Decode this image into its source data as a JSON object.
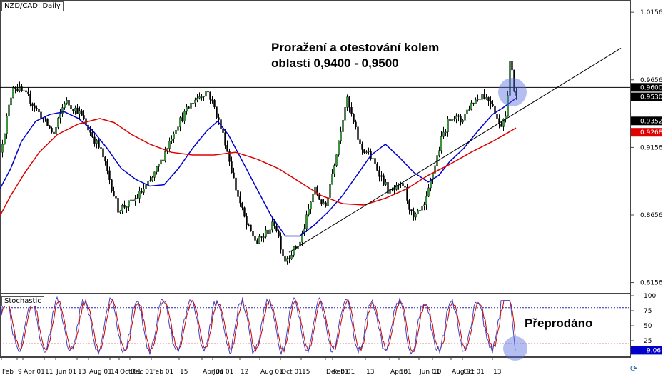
{
  "chart_title": "NZD/CAD: Daily",
  "annotation_text": {
    "line1": "Proražení a otestování kolem",
    "line2": "oblasti 0,9400 - 0,9500",
    "oversold": "Přeprodáno"
  },
  "stochastic_label": "Stochastic",
  "logo_icon": "cycle-logo-icon",
  "chart_data": [
    {
      "type": "candlestick",
      "title": "NZD/CAD: Daily",
      "ylim": [
        0.808,
        1.0236
      ],
      "price_ticks": [
        "1.0156",
        "0.9656",
        "0.9156",
        "0.8656",
        "0.8156"
      ],
      "horizontal_level": 0.96,
      "price_labels": [
        {
          "text": "0.9600",
          "value": 0.96,
          "bg": "#000000"
        },
        {
          "text": "0.9530",
          "value": 0.953,
          "bg": "#000000"
        },
        {
          "text": "0.9352",
          "value": 0.9352,
          "bg": "#000000"
        },
        {
          "text": "0.9268",
          "value": 0.9268,
          "bg": "#e00000"
        }
      ],
      "x_tick_labels": [
        "Feb",
        "9",
        "Apr 01",
        "11",
        "Jun 01",
        "13",
        "Aug 01",
        "14",
        "Oct 01",
        "Dec 01",
        "Feb 01",
        "15",
        "Apr 01",
        "Jun 01",
        "12",
        "Aug 01",
        "Oct 01",
        "15",
        "Dec 01",
        "Feb 01",
        "13",
        "Apr 01",
        "15",
        "Jun 01",
        "10",
        "Aug 01",
        "Oct 01",
        "13"
      ],
      "close_path": [
        [
          0,
          0.912
        ],
        [
          18,
          0.962
        ],
        [
          40,
          0.952
        ],
        [
          75,
          0.925
        ],
        [
          90,
          0.95
        ],
        [
          110,
          0.942
        ],
        [
          125,
          0.928
        ],
        [
          142,
          0.912
        ],
        [
          165,
          0.87
        ],
        [
          185,
          0.875
        ],
        [
          210,
          0.89
        ],
        [
          225,
          0.905
        ],
        [
          245,
          0.93
        ],
        [
          270,
          0.95
        ],
        [
          290,
          0.958
        ],
        [
          300,
          0.945
        ],
        [
          315,
          0.92
        ],
        [
          330,
          0.885
        ],
        [
          345,
          0.858
        ],
        [
          360,
          0.845
        ],
        [
          385,
          0.86
        ],
        [
          398,
          0.832
        ],
        [
          420,
          0.845
        ],
        [
          440,
          0.885
        ],
        [
          455,
          0.87
        ],
        [
          470,
          0.91
        ],
        [
          485,
          0.952
        ],
        [
          505,
          0.915
        ],
        [
          515,
          0.912
        ],
        [
          530,
          0.898
        ],
        [
          545,
          0.882
        ],
        [
          565,
          0.888
        ],
        [
          578,
          0.862
        ],
        [
          595,
          0.872
        ],
        [
          605,
          0.895
        ],
        [
          620,
          0.925
        ],
        [
          632,
          0.94
        ],
        [
          645,
          0.935
        ],
        [
          660,
          0.948
        ],
        [
          675,
          0.955
        ],
        [
          690,
          0.948
        ],
        [
          700,
          0.93
        ],
        [
          710,
          0.945
        ],
        [
          715,
          0.985
        ],
        [
          720,
          0.958
        ],
        [
          723,
          0.953
        ]
      ],
      "series": [
        {
          "name": "",
          "color": "#0000cc",
          "values": [
            [
              0,
              0.885
            ],
            [
              15,
              0.9
            ],
            [
              30,
              0.92
            ],
            [
              50,
              0.935
            ],
            [
              70,
              0.94
            ],
            [
              90,
              0.942
            ],
            [
              110,
              0.937
            ],
            [
              130,
              0.928
            ],
            [
              150,
              0.915
            ],
            [
              170,
              0.9
            ],
            [
              190,
              0.892
            ],
            [
              210,
              0.887
            ],
            [
              230,
              0.888
            ],
            [
              250,
              0.9
            ],
            [
              270,
              0.915
            ],
            [
              290,
              0.928
            ],
            [
              305,
              0.935
            ],
            [
              320,
              0.925
            ],
            [
              340,
              0.905
            ],
            [
              360,
              0.885
            ],
            [
              380,
              0.865
            ],
            [
              400,
              0.85
            ],
            [
              420,
              0.85
            ],
            [
              440,
              0.858
            ],
            [
              460,
              0.868
            ],
            [
              480,
              0.88
            ],
            [
              500,
              0.895
            ],
            [
              520,
              0.91
            ],
            [
              540,
              0.918
            ],
            [
              560,
              0.908
            ],
            [
              580,
              0.897
            ],
            [
              600,
              0.89
            ],
            [
              615,
              0.895
            ],
            [
              630,
              0.905
            ],
            [
              650,
              0.915
            ],
            [
              670,
              0.928
            ],
            [
              690,
              0.94
            ],
            [
              705,
              0.945
            ],
            [
              723,
              0.952
            ]
          ]
        },
        {
          "name": "",
          "color": "#dd0000",
          "values": [
            [
              0,
              0.865
            ],
            [
              15,
              0.88
            ],
            [
              35,
              0.897
            ],
            [
              55,
              0.912
            ],
            [
              80,
              0.925
            ],
            [
              110,
              0.933
            ],
            [
              140,
              0.937
            ],
            [
              160,
              0.934
            ],
            [
              185,
              0.925
            ],
            [
              210,
              0.918
            ],
            [
              240,
              0.912
            ],
            [
              270,
              0.91
            ],
            [
              300,
              0.91
            ],
            [
              330,
              0.912
            ],
            [
              360,
              0.907
            ],
            [
              390,
              0.9
            ],
            [
              420,
              0.89
            ],
            [
              450,
              0.88
            ],
            [
              480,
              0.874
            ],
            [
              510,
              0.873
            ],
            [
              540,
              0.878
            ],
            [
              570,
              0.885
            ],
            [
              600,
              0.895
            ],
            [
              630,
              0.903
            ],
            [
              660,
              0.912
            ],
            [
              690,
              0.92
            ],
            [
              710,
              0.926
            ],
            [
              723,
              0.93
            ]
          ]
        }
      ],
      "trendline": [
        [
          405,
          0.838
        ],
        [
          870,
          0.989
        ]
      ],
      "circle_center": [
        718,
        0.9565
      ]
    },
    {
      "type": "line",
      "title": "Stochastic",
      "ylim": [
        0,
        100
      ],
      "ticks": [
        "100",
        "75",
        "50",
        "25"
      ],
      "levels": [
        80,
        20
      ],
      "current_label": {
        "text": "9.06",
        "value": 9.06,
        "bg": "#0000cc"
      },
      "circle_center": [
        722,
        12
      ]
    }
  ]
}
